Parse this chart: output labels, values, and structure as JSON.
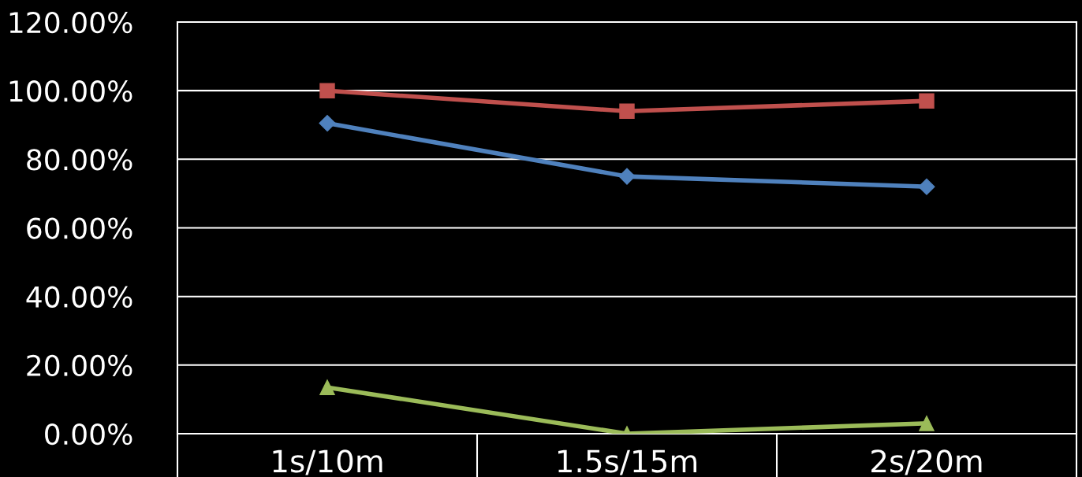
{
  "chart_data": {
    "type": "line",
    "categories": [
      "1s/10m",
      "1.5s/15m",
      "2s/20m"
    ],
    "series": [
      {
        "color": "#4f81bd",
        "values": [
          90.5,
          75,
          72
        ],
        "marker": "diamond"
      },
      {
        "color": "#c0504d",
        "values": [
          100,
          94,
          97
        ],
        "marker": "square"
      },
      {
        "color": "#9bbb59",
        "values": [
          13.5,
          0,
          3
        ],
        "marker": "triangle"
      }
    ],
    "ylim": [
      0,
      120
    ],
    "yticks": [
      {
        "value": 0,
        "label": "0.00%"
      },
      {
        "value": 20,
        "label": "20.00%"
      },
      {
        "value": 40,
        "label": "40.00%"
      },
      {
        "value": 60,
        "label": "60.00%"
      },
      {
        "value": 80,
        "label": "80.00%"
      },
      {
        "value": 100,
        "label": "100.00%"
      },
      {
        "value": 120,
        "label": "120.00%"
      }
    ],
    "grid": "y",
    "legend": false
  }
}
